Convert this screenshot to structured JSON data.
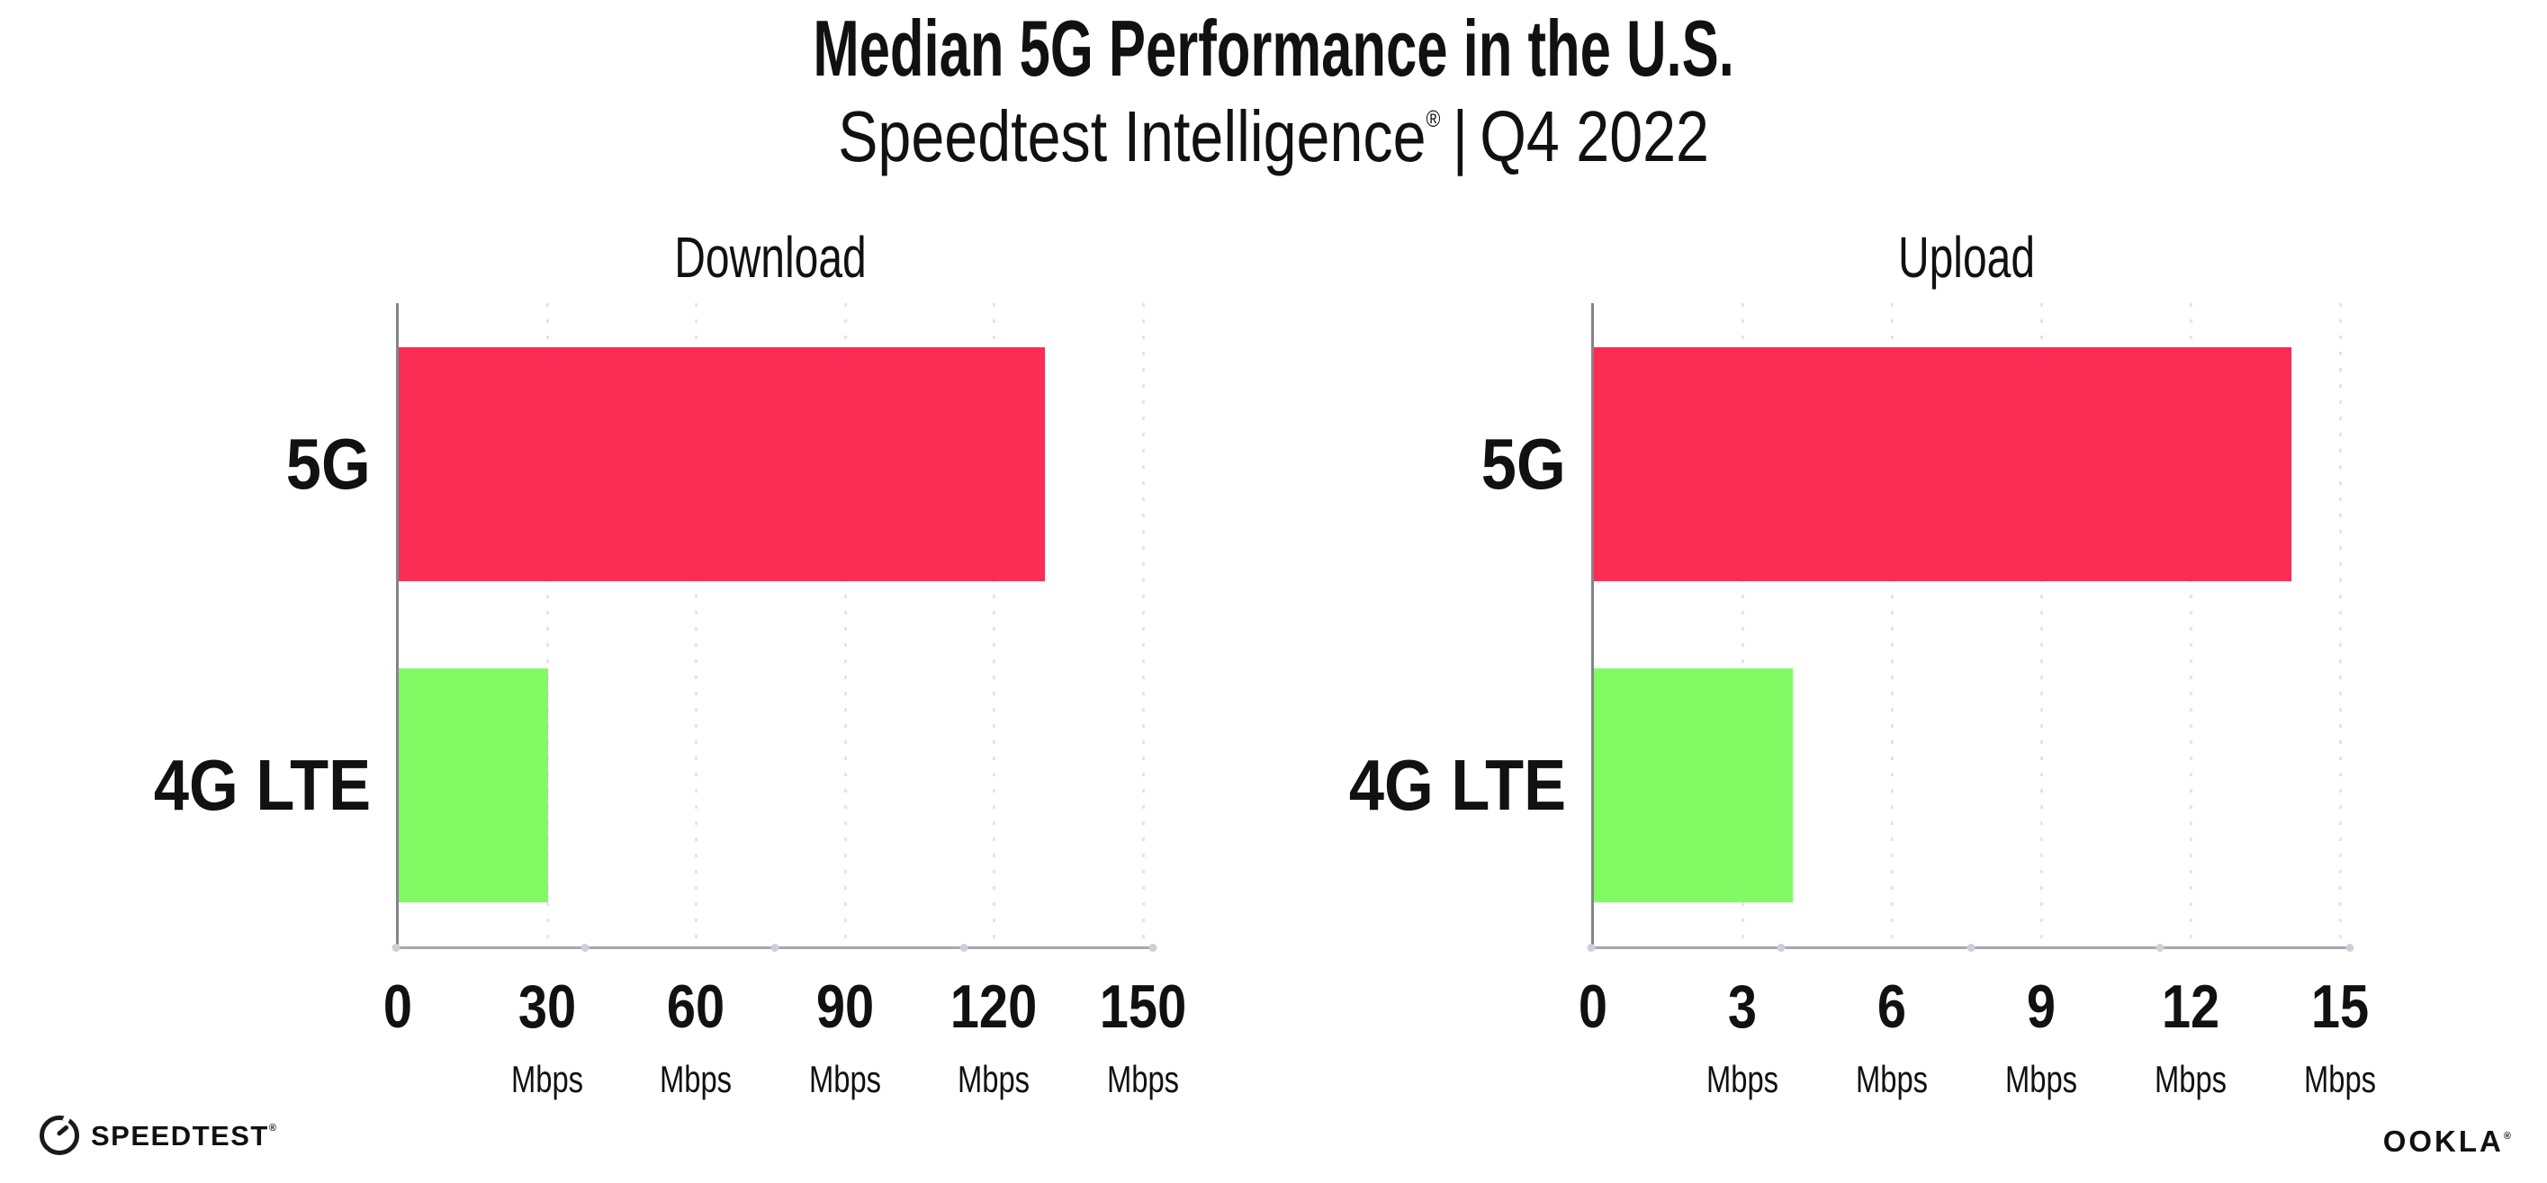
{
  "title": "Median 5G Performance in the U.S.",
  "subtitle": {
    "brand": "Speedtest Intelligence",
    "registered_mark": "®",
    "separator": "|",
    "period": "Q4 2022"
  },
  "footer": {
    "speedtest_wordmark": "SPEEDTEST",
    "speedtest_mark": "®",
    "speedtest_icon": "gauge-icon",
    "ookla_wordmark": "OOKLA",
    "ookla_mark": "®"
  },
  "colors": {
    "bar_5g": "#FC2D55",
    "bar_4g_lte": "#82FA64",
    "y_axis": "#83838B",
    "x_axis": "#A6A6AE",
    "gridline": "#E4E4EE",
    "text": "#111111"
  },
  "chart_data": [
    {
      "type": "bar",
      "orientation": "horizontal",
      "title": "Download",
      "categories": [
        "5G",
        "4G LTE"
      ],
      "values": [
        130,
        30
      ],
      "unit": "Mbps",
      "ticks": [
        0,
        30,
        60,
        90,
        120,
        150
      ],
      "xlim": [
        0,
        150
      ],
      "bar_colors": [
        "#FC2D55",
        "#82FA64"
      ],
      "grid": "dotted-vertical",
      "legend": "none"
    },
    {
      "type": "bar",
      "orientation": "horizontal",
      "title": "Upload",
      "categories": [
        "5G",
        "4G LTE"
      ],
      "values": [
        14,
        4
      ],
      "unit": "Mbps",
      "ticks": [
        0,
        3,
        6,
        9,
        12,
        15
      ],
      "xlim": [
        0,
        15
      ],
      "bar_colors": [
        "#FC2D55",
        "#82FA64"
      ],
      "grid": "dotted-vertical",
      "legend": "none"
    }
  ]
}
